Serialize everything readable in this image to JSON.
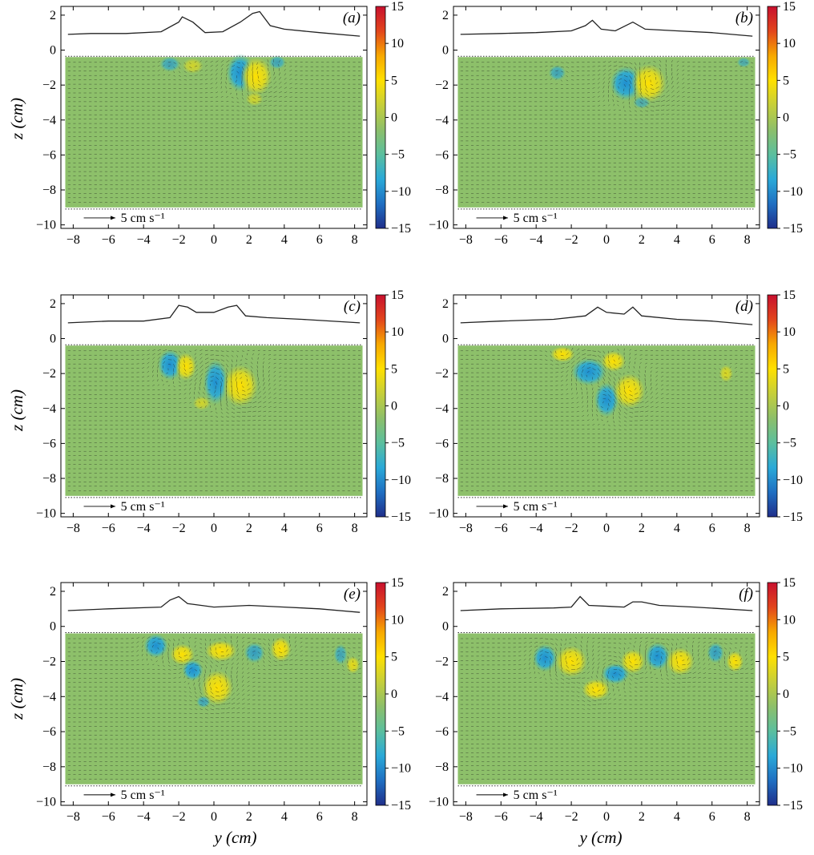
{
  "figure": {
    "xlabel": "y (cm)",
    "ylabel": "z (cm)",
    "xticks": [
      -8,
      -6,
      -4,
      -2,
      0,
      2,
      4,
      6,
      8
    ],
    "yticks": [
      2,
      0,
      -2,
      -4,
      -6,
      -8,
      -10
    ],
    "colorbar_ticks": [
      15,
      10,
      5,
      0,
      -5,
      -10,
      -15
    ],
    "colorbar_colors": [
      "#1f2e8a",
      "#1f6fc2",
      "#2aa9d8",
      "#5bbf9e",
      "#8dbf6a",
      "#c6cf3a",
      "#ffe000",
      "#f7a800",
      "#e2451c",
      "#c8102e"
    ],
    "field_color": "#8dc06a",
    "vector_color": "#1a1a1a"
  },
  "chart_data": [
    {
      "type": "heatmap",
      "panel": "a",
      "label": "(a)",
      "xlim": [
        -8.7,
        8.7
      ],
      "ylim": [
        -10.2,
        2.5
      ],
      "colorbar_range": [
        -15,
        15
      ],
      "reference_vector": "5 cm s⁻¹",
      "surface_profile": [
        [
          -8.3,
          0.9
        ],
        [
          -7,
          0.95
        ],
        [
          -5,
          0.95
        ],
        [
          -3,
          1.05
        ],
        [
          -2,
          1.6
        ],
        [
          -1.8,
          1.9
        ],
        [
          -1.2,
          1.6
        ],
        [
          -0.5,
          1.0
        ],
        [
          0.5,
          1.05
        ],
        [
          1.5,
          1.6
        ],
        [
          2.2,
          2.1
        ],
        [
          2.6,
          2.2
        ],
        [
          3.2,
          1.4
        ],
        [
          4,
          1.2
        ],
        [
          6,
          1.0
        ],
        [
          8.3,
          0.8
        ]
      ],
      "vortices": [
        [
          -2.5,
          -0.8,
          -0.6,
          0.6,
          0.45
        ],
        [
          -1.2,
          -0.9,
          0.5,
          0.6,
          0.45
        ],
        [
          1.5,
          -1.3,
          -1,
          0.8,
          1.1
        ],
        [
          2.4,
          -1.5,
          1,
          0.9,
          1.1
        ],
        [
          3.6,
          -0.7,
          -0.6,
          0.5,
          0.4
        ],
        [
          2.3,
          -2.8,
          0.5,
          0.5,
          0.4
        ]
      ]
    },
    {
      "type": "heatmap",
      "panel": "b",
      "label": "(b)",
      "xlim": [
        -8.7,
        8.7
      ],
      "ylim": [
        -10.2,
        2.5
      ],
      "colorbar_range": [
        -15,
        15
      ],
      "reference_vector": "5 cm s⁻¹",
      "surface_profile": [
        [
          -8.3,
          0.9
        ],
        [
          -6,
          0.95
        ],
        [
          -4,
          1.0
        ],
        [
          -2,
          1.1
        ],
        [
          -1.2,
          1.4
        ],
        [
          -0.8,
          1.7
        ],
        [
          -0.3,
          1.2
        ],
        [
          0.5,
          1.1
        ],
        [
          1.5,
          1.6
        ],
        [
          2.2,
          1.2
        ],
        [
          4,
          1.1
        ],
        [
          6,
          1.0
        ],
        [
          8.3,
          0.8
        ]
      ],
      "vortices": [
        [
          -2.8,
          -1.3,
          -0.6,
          0.5,
          0.45
        ],
        [
          1.1,
          -1.9,
          -1,
          0.9,
          1.0
        ],
        [
          2.4,
          -1.9,
          1,
          1.0,
          1.1
        ],
        [
          2.0,
          -3.0,
          -0.5,
          0.5,
          0.35
        ],
        [
          7.8,
          -0.7,
          -0.5,
          0.4,
          0.3
        ]
      ]
    },
    {
      "type": "heatmap",
      "panel": "c",
      "label": "(c)",
      "xlim": [
        -8.7,
        8.7
      ],
      "ylim": [
        -10.2,
        2.5
      ],
      "colorbar_range": [
        -15,
        15
      ],
      "reference_vector": "5 cm s⁻¹",
      "surface_profile": [
        [
          -8.3,
          0.9
        ],
        [
          -6,
          1.0
        ],
        [
          -4,
          1.0
        ],
        [
          -2.5,
          1.2
        ],
        [
          -2,
          1.9
        ],
        [
          -1.5,
          1.8
        ],
        [
          -1,
          1.5
        ],
        [
          0,
          1.5
        ],
        [
          0.8,
          1.8
        ],
        [
          1.3,
          1.9
        ],
        [
          1.8,
          1.3
        ],
        [
          3,
          1.2
        ],
        [
          5,
          1.1
        ],
        [
          8.3,
          0.9
        ]
      ],
      "vortices": [
        [
          -2.5,
          -1.5,
          -1,
          0.7,
          0.9
        ],
        [
          -1.6,
          -1.6,
          0.9,
          0.6,
          0.8
        ],
        [
          0.1,
          -2.5,
          -1,
          0.7,
          1.3
        ],
        [
          1.5,
          -2.7,
          1,
          1.0,
          1.2
        ],
        [
          -0.7,
          -3.7,
          0.5,
          0.5,
          0.4
        ]
      ]
    },
    {
      "type": "heatmap",
      "panel": "d",
      "label": "(d)",
      "xlim": [
        -8.7,
        8.7
      ],
      "ylim": [
        -10.2,
        2.5
      ],
      "colorbar_range": [
        -15,
        15
      ],
      "reference_vector": "5 cm s⁻¹",
      "surface_profile": [
        [
          -8.3,
          0.9
        ],
        [
          -6,
          1.0
        ],
        [
          -3,
          1.1
        ],
        [
          -1.2,
          1.3
        ],
        [
          -0.5,
          1.8
        ],
        [
          0,
          1.5
        ],
        [
          1,
          1.4
        ],
        [
          1.5,
          1.8
        ],
        [
          2,
          1.3
        ],
        [
          4,
          1.1
        ],
        [
          6,
          1.0
        ],
        [
          8.3,
          0.8
        ]
      ],
      "vortices": [
        [
          -2.5,
          -0.9,
          1,
          0.7,
          0.45
        ],
        [
          -1.0,
          -1.9,
          -1,
          1.0,
          0.8
        ],
        [
          0.4,
          -1.3,
          1,
          0.7,
          0.6
        ],
        [
          0,
          -3.5,
          -1,
          0.7,
          1.0
        ],
        [
          1.3,
          -3.0,
          1,
          0.9,
          1.0
        ],
        [
          6.8,
          -2.0,
          0.6,
          0.4,
          0.5
        ]
      ]
    },
    {
      "type": "heatmap",
      "panel": "e",
      "label": "(e)",
      "xlim": [
        -8.7,
        8.7
      ],
      "ylim": [
        -10.2,
        2.5
      ],
      "colorbar_range": [
        -15,
        15
      ],
      "reference_vector": "5 cm s⁻¹",
      "surface_profile": [
        [
          -8.3,
          0.9
        ],
        [
          -6,
          1.0
        ],
        [
          -3,
          1.1
        ],
        [
          -2.5,
          1.5
        ],
        [
          -2,
          1.7
        ],
        [
          -1.5,
          1.3
        ],
        [
          0,
          1.1
        ],
        [
          2,
          1.2
        ],
        [
          4,
          1.1
        ],
        [
          6,
          1.0
        ],
        [
          8.3,
          0.8
        ]
      ],
      "vortices": [
        [
          -3.3,
          -1.1,
          -1,
          0.7,
          0.7
        ],
        [
          -1.8,
          -1.6,
          1,
          0.7,
          0.6
        ],
        [
          0.4,
          -1.4,
          1,
          0.9,
          0.6
        ],
        [
          -1.2,
          -2.5,
          -1,
          0.6,
          0.6
        ],
        [
          0.2,
          -3.5,
          1,
          0.9,
          1.0
        ],
        [
          -0.6,
          -4.3,
          -0.6,
          0.4,
          0.35
        ],
        [
          2.3,
          -1.5,
          -0.7,
          0.6,
          0.6
        ],
        [
          3.8,
          -1.3,
          1,
          0.6,
          0.7
        ],
        [
          7.2,
          -1.6,
          -0.6,
          0.4,
          0.6
        ],
        [
          7.9,
          -2.2,
          0.7,
          0.4,
          0.5
        ]
      ]
    },
    {
      "type": "heatmap",
      "panel": "f",
      "label": "(f)",
      "xlim": [
        -8.7,
        8.7
      ],
      "ylim": [
        -10.2,
        2.5
      ],
      "colorbar_range": [
        -15,
        15
      ],
      "reference_vector": "5 cm s⁻¹",
      "surface_profile": [
        [
          -8.3,
          0.9
        ],
        [
          -6,
          1.0
        ],
        [
          -3,
          1.05
        ],
        [
          -2,
          1.1
        ],
        [
          -1.5,
          1.7
        ],
        [
          -1.0,
          1.2
        ],
        [
          1,
          1.1
        ],
        [
          1.5,
          1.4
        ],
        [
          2,
          1.4
        ],
        [
          3,
          1.2
        ],
        [
          5,
          1.1
        ],
        [
          8.3,
          0.9
        ]
      ],
      "vortices": [
        [
          -3.5,
          -1.8,
          -1,
          0.7,
          0.8
        ],
        [
          -2.0,
          -2.0,
          1,
          0.9,
          0.9
        ],
        [
          -0.6,
          -3.6,
          1,
          0.8,
          0.6
        ],
        [
          0.5,
          -2.7,
          -1,
          0.8,
          0.6
        ],
        [
          1.5,
          -2.0,
          1,
          0.7,
          0.7
        ],
        [
          2.9,
          -1.7,
          -1,
          0.7,
          0.8
        ],
        [
          4.2,
          -2.0,
          1,
          0.8,
          0.8
        ],
        [
          6.2,
          -1.5,
          -0.7,
          0.5,
          0.6
        ],
        [
          7.3,
          -2.0,
          1,
          0.5,
          0.6
        ]
      ]
    }
  ]
}
